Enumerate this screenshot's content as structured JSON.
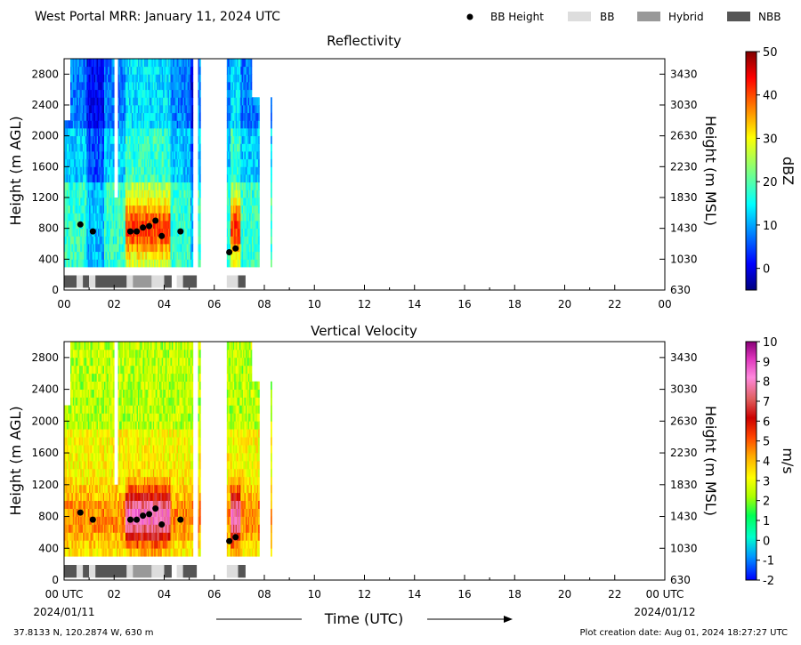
{
  "header": {
    "title": "West Portal MRR:  January 11, 2024 UTC",
    "legend": [
      {
        "label": "BB Height",
        "kind": "dot",
        "color": "#000000"
      },
      {
        "label": "BB",
        "kind": "swatch",
        "color": "#dddddd"
      },
      {
        "label": "Hybrid",
        "kind": "swatch",
        "color": "#999999"
      },
      {
        "label": "NBB",
        "kind": "swatch",
        "color": "#555555"
      }
    ]
  },
  "chart_data": [
    {
      "type": "heatmap",
      "title": "Reflectivity",
      "ylabel": "Height (m AGL)",
      "ylabel_right": "Height (m MSL)",
      "y_ticks": [
        "0",
        "400",
        "800",
        "1200",
        "1600",
        "2000",
        "2400",
        "2800"
      ],
      "y_ticks_right": [
        "630",
        "1030",
        "1430",
        "1830",
        "2230",
        "2630",
        "3030",
        "3430"
      ],
      "x_ticks": [
        "00",
        "02",
        "04",
        "06",
        "08",
        "10",
        "12",
        "14",
        "16",
        "18",
        "20",
        "22",
        "00"
      ],
      "xlim": [
        0,
        24
      ],
      "ylim": [
        0,
        3000
      ],
      "colorbar": {
        "label": "dBZ",
        "range": [
          -5,
          50
        ],
        "ticks": [
          "0",
          "10",
          "20",
          "30",
          "40",
          "50"
        ],
        "colormap": "jet"
      }
    },
    {
      "type": "heatmap",
      "title": "Vertical Velocity",
      "ylabel": "Height (m AGL)",
      "ylabel_right": "Height (m MSL)",
      "y_ticks": [
        "0",
        "400",
        "800",
        "1200",
        "1600",
        "2000",
        "2400",
        "2800"
      ],
      "y_ticks_right": [
        "630",
        "1030",
        "1430",
        "1830",
        "2230",
        "2630",
        "3030",
        "3430"
      ],
      "x_ticks": [
        "00 UTC",
        "02",
        "04",
        "06",
        "08",
        "10",
        "12",
        "14",
        "16",
        "18",
        "20",
        "22",
        "00 UTC"
      ],
      "xlim": [
        0,
        24
      ],
      "ylim": [
        0,
        3000
      ],
      "colorbar": {
        "label": "m/s",
        "range": [
          -2,
          10
        ],
        "ticks": [
          "-2",
          "-1",
          "0",
          "1",
          "2",
          "3",
          "4",
          "5",
          "6",
          "7",
          "8",
          "9",
          "10"
        ],
        "colormap": "velocity"
      }
    }
  ],
  "bb_height_series": {
    "name": "BB Height",
    "x_hours": [
      0.65,
      1.15,
      2.65,
      2.9,
      3.15,
      3.4,
      3.65,
      3.9,
      4.65,
      6.6,
      6.85
    ],
    "y_m_agl": [
      850,
      760,
      760,
      760,
      810,
      830,
      900,
      700,
      760,
      490,
      540
    ]
  },
  "bb_classification": {
    "segments": [
      {
        "start": 0.0,
        "end": 0.5,
        "class": "NBB"
      },
      {
        "start": 0.5,
        "end": 0.75,
        "class": "BB"
      },
      {
        "start": 0.75,
        "end": 1.0,
        "class": "NBB"
      },
      {
        "start": 1.0,
        "end": 1.25,
        "class": "BB"
      },
      {
        "start": 1.25,
        "end": 2.5,
        "class": "NBB"
      },
      {
        "start": 2.5,
        "end": 2.75,
        "class": "BB"
      },
      {
        "start": 2.75,
        "end": 3.5,
        "class": "Hybrid"
      },
      {
        "start": 3.5,
        "end": 4.0,
        "class": "BB"
      },
      {
        "start": 4.0,
        "end": 4.3,
        "class": "NBB"
      },
      {
        "start": 4.5,
        "end": 4.75,
        "class": "BB"
      },
      {
        "start": 4.75,
        "end": 5.3,
        "class": "NBB"
      },
      {
        "start": 6.5,
        "end": 6.95,
        "class": "BB"
      },
      {
        "start": 6.95,
        "end": 7.25,
        "class": "NBB"
      }
    ]
  },
  "footer": {
    "date_start": "2024/01/11",
    "date_end": "2024/01/12",
    "xlabel": "Time (UTC)",
    "location": "37.8133 N, 120.2874 W, 630 m",
    "created": "Plot creation date: Aug 01, 2024 18:27:27 UTC"
  }
}
